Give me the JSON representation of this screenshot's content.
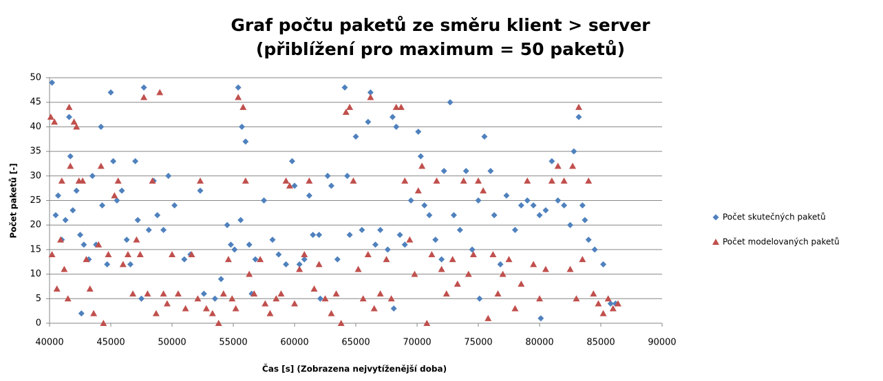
{
  "chart_data": {
    "type": "scatter",
    "title": "Graf počtu paketů ze směru klient > server",
    "subtitle": "(přiblížení pro maximum = 50 paketů)",
    "xlabel": "Čas [s] (Zobrazena nejvytíženější doba)",
    "ylabel": "Počet paketů [-]",
    "xlim": [
      40000,
      90000
    ],
    "xticks": [
      40000,
      45000,
      50000,
      55000,
      60000,
      65000,
      70000,
      75000,
      80000,
      85000,
      90000
    ],
    "ylim": [
      0,
      50
    ],
    "yticks": [
      0,
      5,
      10,
      15,
      20,
      25,
      30,
      35,
      40,
      45,
      50
    ],
    "grid": true,
    "legend": "right",
    "series": [
      {
        "name": "Počet skutečných paketů",
        "color": "#4f81bd",
        "marker": "diamond",
        "x": [
          40200,
          40500,
          40700,
          41000,
          41300,
          41600,
          41700,
          41900,
          42200,
          42500,
          42800,
          43200,
          43500,
          43800,
          44200,
          44300,
          44700,
          45000,
          45200,
          45500,
          45900,
          46300,
          46600,
          47000,
          47200,
          47700,
          48100,
          48500,
          48800,
          49300,
          49700,
          50200,
          51000,
          51500,
          52300,
          52600,
          53500,
          54000,
          54500,
          54800,
          55100,
          55400,
          55600,
          55700,
          56000,
          56300,
          56800,
          57500,
          58200,
          58700,
          59300,
          59800,
          60000,
          60400,
          60800,
          61200,
          61500,
          62000,
          62700,
          63000,
          63500,
          64100,
          64300,
          64500,
          65000,
          65500,
          66000,
          66200,
          66600,
          67000,
          67600,
          68000,
          68300,
          68600,
          69000,
          69500,
          70100,
          70300,
          70600,
          71000,
          71500,
          72000,
          72200,
          72700,
          73000,
          73500,
          74000,
          74500,
          75000,
          75500,
          76000,
          76300,
          76800,
          77300,
          78000,
          78500,
          79000,
          79500,
          80000,
          80500,
          81000,
          81500,
          82000,
          82500,
          82800,
          83200,
          83500,
          83700,
          84000,
          84500,
          85200,
          42600,
          47500,
          56500,
          62100,
          68100,
          75100,
          80100,
          85800,
          86200
        ],
        "values": [
          49,
          22,
          26,
          17,
          21,
          42,
          34,
          23,
          27,
          18,
          16,
          13,
          30,
          16,
          40,
          24,
          12,
          47,
          33,
          25,
          27,
          17,
          12,
          33,
          21,
          48,
          19,
          29,
          22,
          19,
          30,
          24,
          13,
          14,
          27,
          6,
          5,
          9,
          20,
          16,
          15,
          48,
          21,
          40,
          37,
          16,
          13,
          25,
          17,
          14,
          12,
          33,
          28,
          12,
          13,
          26,
          18,
          18,
          30,
          28,
          13,
          48,
          30,
          18,
          38,
          19,
          41,
          47,
          16,
          19,
          15,
          42,
          40,
          18,
          16,
          25,
          39,
          34,
          24,
          22,
          17,
          13,
          31,
          45,
          22,
          19,
          31,
          15,
          25,
          38,
          31,
          22,
          12,
          26,
          19,
          24,
          25,
          24,
          22,
          23,
          33,
          25,
          24,
          20,
          35,
          42,
          24,
          21,
          17,
          15,
          12,
          2,
          5,
          6,
          5,
          3,
          5,
          1,
          4,
          4
        ]
      },
      {
        "name": "Počet modelovaných paketů",
        "color": "#c0504d",
        "marker": "triangle",
        "x": [
          40100,
          40400,
          40200,
          40600,
          40900,
          41000,
          41200,
          41500,
          41600,
          41700,
          42000,
          42200,
          42400,
          42700,
          43000,
          43300,
          43600,
          44000,
          44200,
          44400,
          44800,
          45300,
          45600,
          46000,
          46400,
          46800,
          47100,
          47400,
          47700,
          48000,
          48400,
          48700,
          49000,
          49300,
          49600,
          50000,
          50500,
          51100,
          51600,
          52100,
          52300,
          52800,
          53300,
          53800,
          54200,
          54600,
          54900,
          55200,
          55400,
          55800,
          56000,
          56300,
          56700,
          57200,
          57600,
          58000,
          58500,
          58900,
          59300,
          59600,
          60000,
          60400,
          60800,
          61200,
          61600,
          62000,
          62500,
          63000,
          63400,
          63800,
          64200,
          64500,
          64800,
          65200,
          65600,
          66000,
          66200,
          66500,
          67000,
          67500,
          67900,
          68300,
          68700,
          69000,
          69400,
          69800,
          70100,
          70400,
          70800,
          71200,
          71600,
          72000,
          72400,
          72900,
          73300,
          73800,
          74200,
          74600,
          75000,
          75400,
          75800,
          76200,
          76600,
          77000,
          77500,
          78000,
          78500,
          79000,
          79500,
          80000,
          80500,
          81000,
          81500,
          82000,
          82500,
          82700,
          83000,
          83200,
          83500,
          84000,
          84400,
          84800,
          85200,
          85600,
          86000,
          86400
        ],
        "values": [
          42,
          41,
          14,
          7,
          17,
          29,
          11,
          5,
          44,
          32,
          41,
          40,
          29,
          29,
          13,
          7,
          2,
          16,
          32,
          0,
          14,
          26,
          29,
          12,
          14,
          6,
          17,
          14,
          46,
          6,
          29,
          2,
          47,
          6,
          4,
          14,
          6,
          3,
          14,
          5,
          29,
          3,
          2,
          0,
          6,
          13,
          5,
          3,
          46,
          44,
          29,
          10,
          6,
          13,
          4,
          2,
          5,
          6,
          29,
          28,
          4,
          11,
          14,
          29,
          7,
          12,
          5,
          2,
          6,
          0,
          43,
          44,
          29,
          11,
          5,
          14,
          46,
          3,
          6,
          13,
          5,
          44,
          44,
          29,
          17,
          10,
          27,
          32,
          0,
          14,
          29,
          11,
          6,
          13,
          8,
          29,
          10,
          14,
          29,
          27,
          1,
          14,
          6,
          10,
          13,
          3,
          8,
          29,
          12,
          5,
          11,
          29,
          32,
          29,
          11,
          32,
          5,
          44,
          13,
          29,
          6,
          4,
          2,
          5,
          3,
          4
        ]
      }
    ]
  }
}
